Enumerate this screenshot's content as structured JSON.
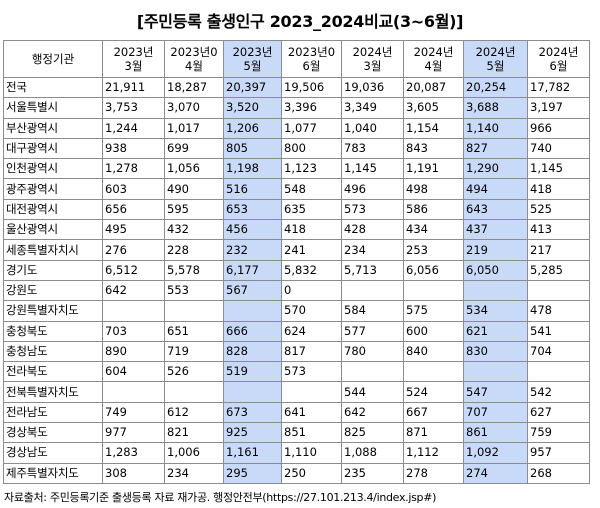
{
  "title": "[주민등록 출생인구 2023_2024비교(3~6월)]",
  "header": {
    "region": "행정기관",
    "months": [
      "2023년\n3월",
      "2023년0\n4월",
      "2023년\n5월",
      "2023년0\n6월",
      "2024년\n3월",
      "2024년\n4월",
      "2024년\n5월",
      "2024년\n6월"
    ]
  },
  "highlight_color": "#c9d9f8",
  "rows": [
    {
      "region": "전국",
      "values": [
        "21,911",
        "18,287",
        "20,397",
        "19,506",
        "19,036",
        "20,087",
        "20,254",
        "17,782"
      ]
    },
    {
      "region": "서울특별시",
      "values": [
        "3,753",
        "3,070",
        "3,520",
        "3,396",
        "3,349",
        "3,605",
        "3,688",
        "3,197"
      ]
    },
    {
      "region": "부산광역시",
      "values": [
        "1,244",
        "1,017",
        "1,206",
        "1,077",
        "1,040",
        "1,154",
        "1,140",
        "966"
      ]
    },
    {
      "region": "대구광역시",
      "values": [
        "938",
        "699",
        "805",
        "800",
        "783",
        "843",
        "827",
        "740"
      ]
    },
    {
      "region": "인천광역시",
      "values": [
        "1,278",
        "1,056",
        "1,198",
        "1,123",
        "1,145",
        "1,191",
        "1,290",
        "1,145"
      ]
    },
    {
      "region": "광주광역시",
      "values": [
        "603",
        "490",
        "516",
        "548",
        "496",
        "498",
        "494",
        "418"
      ]
    },
    {
      "region": "대전광역시",
      "values": [
        "656",
        "595",
        "653",
        "635",
        "573",
        "586",
        "643",
        "525"
      ]
    },
    {
      "region": "울산광역시",
      "values": [
        "495",
        "432",
        "456",
        "418",
        "428",
        "434",
        "437",
        "413"
      ]
    },
    {
      "region": "세종특별자치시",
      "values": [
        "276",
        "228",
        "232",
        "241",
        "234",
        "253",
        "219",
        "217"
      ]
    },
    {
      "region": "경기도",
      "values": [
        "6,512",
        "5,578",
        "6,177",
        "5,832",
        "5,713",
        "6,056",
        "6,050",
        "5,285"
      ]
    },
    {
      "region": "강원도",
      "values": [
        "642",
        "553",
        "567",
        "0",
        "",
        "",
        "",
        ""
      ]
    },
    {
      "region": "강원특별자치도",
      "values": [
        "",
        "",
        "",
        "570",
        "584",
        "575",
        "534",
        "478"
      ]
    },
    {
      "region": "충청북도",
      "values": [
        "703",
        "651",
        "666",
        "624",
        "577",
        "600",
        "621",
        "541"
      ]
    },
    {
      "region": "충청남도",
      "values": [
        "890",
        "719",
        "828",
        "817",
        "780",
        "840",
        "830",
        "704"
      ]
    },
    {
      "region": "전라북도",
      "values": [
        "604",
        "526",
        "519",
        "573",
        "",
        "",
        "",
        ""
      ]
    },
    {
      "region": "전북특별자치도",
      "values": [
        "",
        "",
        "",
        "",
        "544",
        "524",
        "547",
        "542"
      ]
    },
    {
      "region": "전라남도",
      "values": [
        "749",
        "612",
        "673",
        "641",
        "642",
        "667",
        "707",
        "627"
      ]
    },
    {
      "region": "경상북도",
      "values": [
        "977",
        "821",
        "925",
        "851",
        "825",
        "871",
        "861",
        "759"
      ]
    },
    {
      "region": "경상남도",
      "values": [
        "1,283",
        "1,006",
        "1,161",
        "1,110",
        "1,088",
        "1,112",
        "1,092",
        "957"
      ]
    },
    {
      "region": "제주특별자치도",
      "values": [
        "308",
        "234",
        "295",
        "250",
        "235",
        "278",
        "274",
        "268"
      ]
    }
  ],
  "source": "자료출처: 주민등록기준 출생등록 자료 재가공. 행정안전부(https://27.101.213.4/index.jsp#)"
}
